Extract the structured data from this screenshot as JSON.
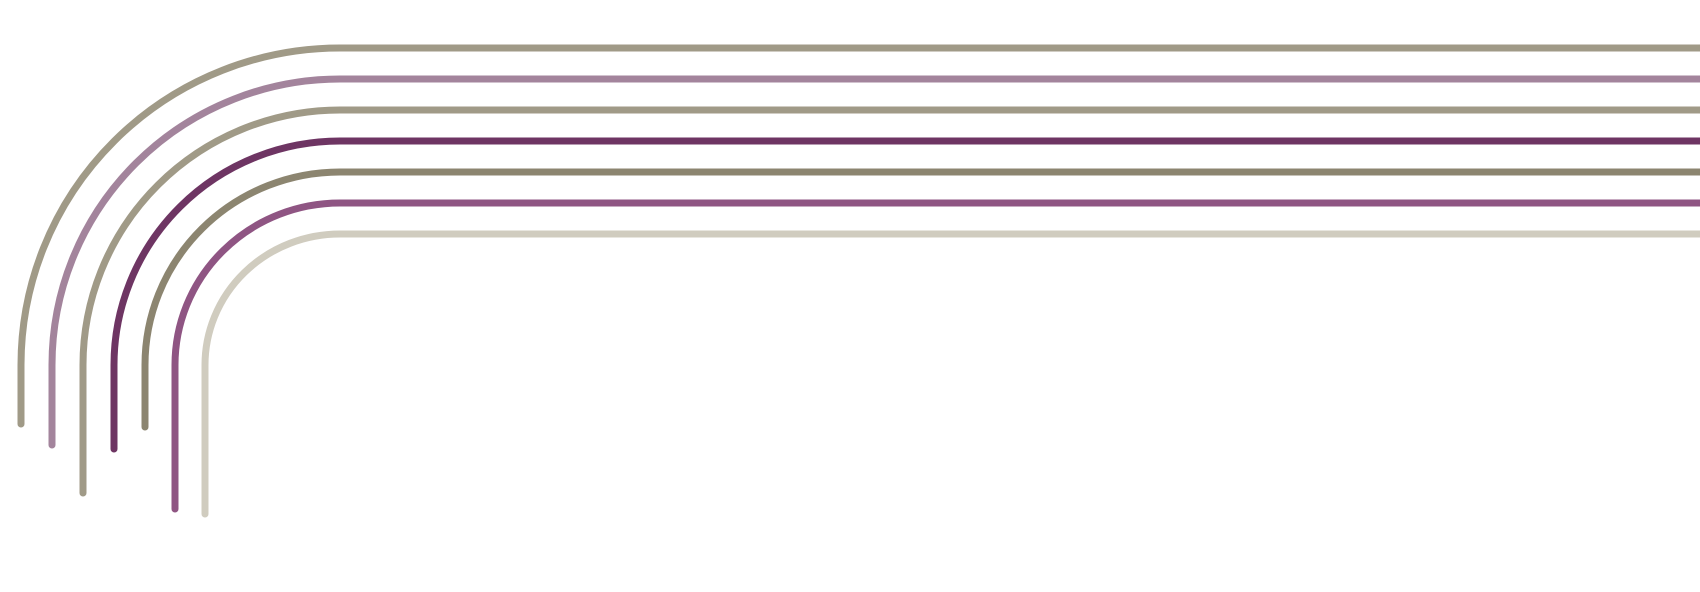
{
  "graphic": {
    "lines": [
      {
        "color": "#a09a87"
      },
      {
        "color": "#a3849c"
      },
      {
        "color": "#a09a87"
      },
      {
        "color": "#6e3563"
      },
      {
        "color": "#8c8570"
      },
      {
        "color": "#8f5583"
      },
      {
        "color": "#d0ccbf"
      }
    ]
  }
}
